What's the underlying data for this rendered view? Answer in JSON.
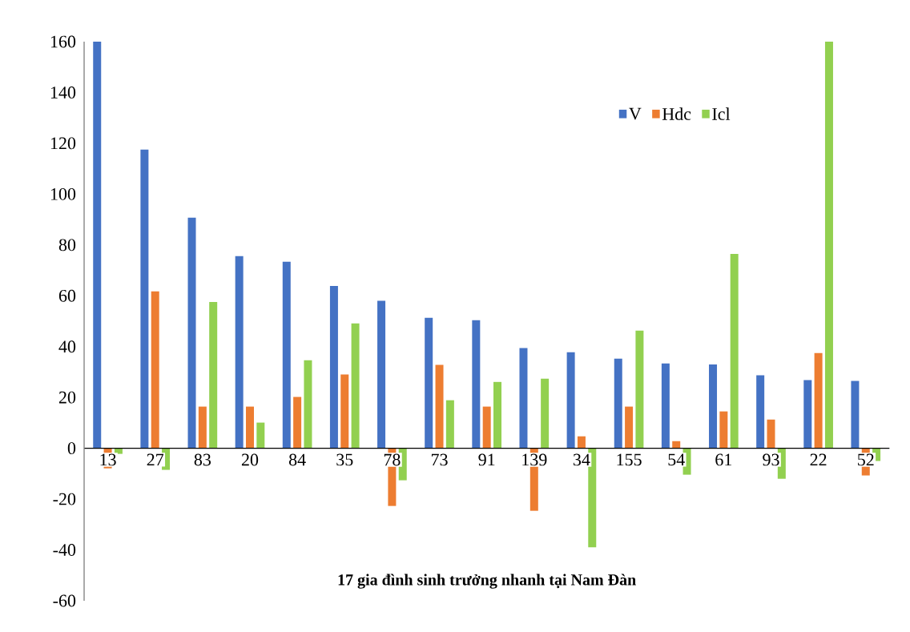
{
  "chart_data": {
    "type": "bar",
    "xlabel": "17 gia đình sinh trưởng nhanh tại Nam Đàn",
    "categories": [
      "13",
      "27",
      "83",
      "20",
      "84",
      "35",
      "78",
      "73",
      "91",
      "139",
      "34",
      "155",
      "54",
      "61",
      "93",
      "22",
      "52"
    ],
    "series": [
      {
        "name": "V",
        "color": "#4472c4",
        "values": [
          160,
          117.5,
          90.7,
          75.6,
          73.4,
          63.9,
          58,
          51.3,
          50.4,
          39.4,
          37.8,
          35.3,
          33.4,
          33,
          28.7,
          26.8,
          26.5
        ]
      },
      {
        "name": "Hdc",
        "color": "#ed7d31",
        "values": [
          -7.9,
          61.7,
          16.4,
          16.4,
          20.2,
          29,
          -22.7,
          32.8,
          16.4,
          -24.6,
          4.7,
          16.4,
          2.8,
          14.5,
          11.3,
          37.5,
          -10.7
        ]
      },
      {
        "name": "Icl",
        "color": "#92d050",
        "values": [
          -2.2,
          -8.5,
          57.6,
          10.1,
          34.6,
          49.1,
          -12.6,
          18.9,
          26.1,
          27.4,
          -39,
          46.3,
          -10.4,
          76.5,
          -12,
          160,
          -5
        ]
      }
    ],
    "ylim": [
      -60,
      160
    ],
    "yticks": [
      -60,
      -40,
      -20,
      0,
      20,
      40,
      60,
      80,
      100,
      120,
      140,
      160
    ],
    "legend": "top right"
  }
}
